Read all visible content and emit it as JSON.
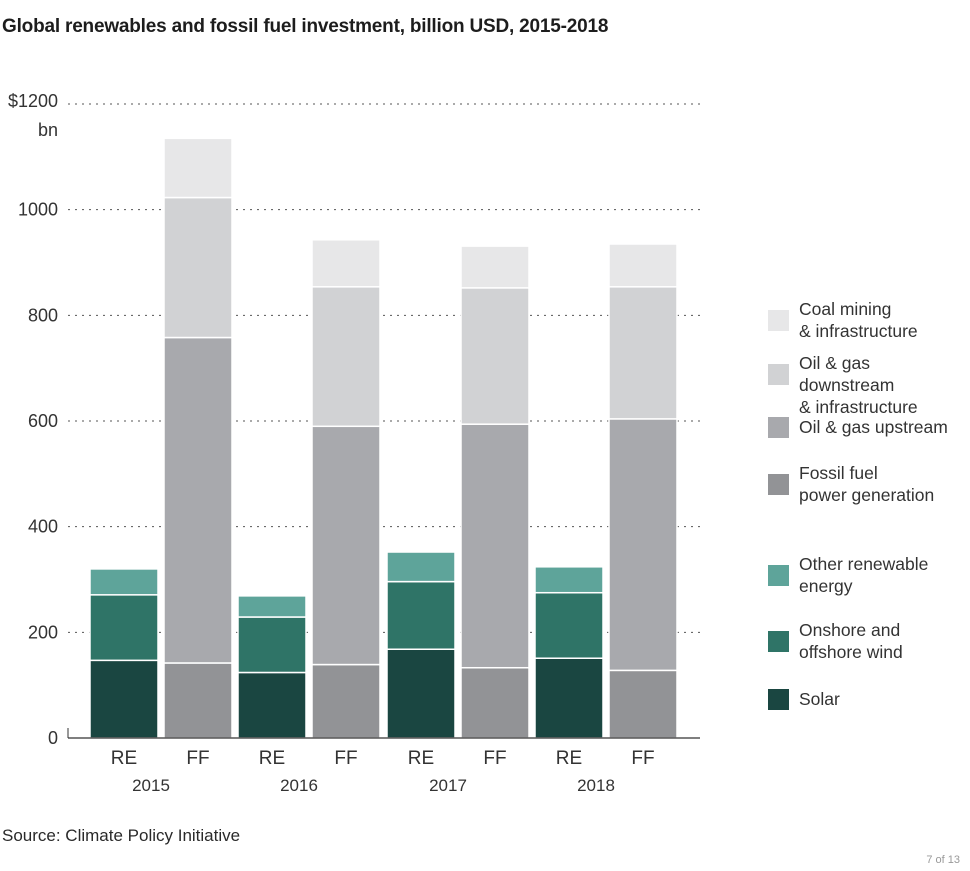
{
  "title": "Global renewables and fossil fuel investment, billion USD, 2015-2018",
  "source": "Source: Climate Policy Initiative",
  "page_indicator": "7 of 13",
  "y_axis": {
    "top_label": "$1200",
    "unit_label": "bn",
    "ticks": [
      "1000",
      "800",
      "600",
      "400",
      "200",
      "0"
    ]
  },
  "legend": [
    {
      "label": "Coal mining\n& infrastructure",
      "color": "#e7e7e8"
    },
    {
      "label": "Oil & gas downstream\n& infrastructure",
      "color": "#d1d2d4"
    },
    {
      "label": "Oil & gas upstream",
      "color": "#a8a9ad"
    },
    {
      "label": "Fossil fuel\npower generation",
      "color": "#929396"
    },
    {
      "label": "Other renewable\nenergy",
      "color": "#5ea49a"
    },
    {
      "label": "Onshore and\noffshore wind",
      "color": "#2f7467"
    },
    {
      "label": "Solar",
      "color": "#1a4641"
    }
  ],
  "chart_data": {
    "type": "bar",
    "stacked": true,
    "title": "Global renewables and fossil fuel investment, billion USD, 2015-2018",
    "ylim": [
      0,
      1200
    ],
    "yticks": [
      0,
      200,
      400,
      600,
      800,
      1000,
      1200
    ],
    "grid": "dotted horizontal",
    "legend_position": "right",
    "groups": [
      {
        "year": "2015",
        "bars": [
          {
            "label": "RE",
            "segments": [
              {
                "series": "Solar",
                "value": 147
              },
              {
                "series": "Onshore and offshore wind",
                "value": 124
              },
              {
                "series": "Other renewable energy",
                "value": 49
              }
            ]
          },
          {
            "label": "FF",
            "segments": [
              {
                "series": "Fossil fuel power generation",
                "value": 142
              },
              {
                "series": "Oil & gas upstream",
                "value": 616
              },
              {
                "series": "Oil & gas downstream & infrastructure",
                "value": 265
              },
              {
                "series": "Coal mining & infrastructure",
                "value": 112
              }
            ]
          }
        ]
      },
      {
        "year": "2016",
        "bars": [
          {
            "label": "RE",
            "segments": [
              {
                "series": "Solar",
                "value": 124
              },
              {
                "series": "Onshore and offshore wind",
                "value": 105
              },
              {
                "series": "Other renewable energy",
                "value": 40
              }
            ]
          },
          {
            "label": "FF",
            "segments": [
              {
                "series": "Fossil fuel power generation",
                "value": 139
              },
              {
                "series": "Oil & gas upstream",
                "value": 451
              },
              {
                "series": "Oil & gas downstream & infrastructure",
                "value": 264
              },
              {
                "series": "Coal mining & infrastructure",
                "value": 89
              }
            ]
          }
        ]
      },
      {
        "year": "2017",
        "bars": [
          {
            "label": "RE",
            "segments": [
              {
                "series": "Solar",
                "value": 168
              },
              {
                "series": "Onshore and offshore wind",
                "value": 128
              },
              {
                "series": "Other renewable energy",
                "value": 56
              }
            ]
          },
          {
            "label": "FF",
            "segments": [
              {
                "series": "Fossil fuel power generation",
                "value": 133
              },
              {
                "series": "Oil & gas upstream",
                "value": 461
              },
              {
                "series": "Oil & gas downstream & infrastructure",
                "value": 258
              },
              {
                "series": "Coal mining & infrastructure",
                "value": 79
              }
            ]
          }
        ]
      },
      {
        "year": "2018",
        "bars": [
          {
            "label": "RE",
            "segments": [
              {
                "series": "Solar",
                "value": 151
              },
              {
                "series": "Onshore and offshore wind",
                "value": 124
              },
              {
                "series": "Other renewable energy",
                "value": 49
              }
            ]
          },
          {
            "label": "FF",
            "segments": [
              {
                "series": "Fossil fuel power generation",
                "value": 128
              },
              {
                "series": "Oil & gas upstream",
                "value": 476
              },
              {
                "series": "Oil & gas downstream & infrastructure",
                "value": 250
              },
              {
                "series": "Coal mining & infrastructure",
                "value": 81
              }
            ]
          }
        ]
      }
    ]
  }
}
